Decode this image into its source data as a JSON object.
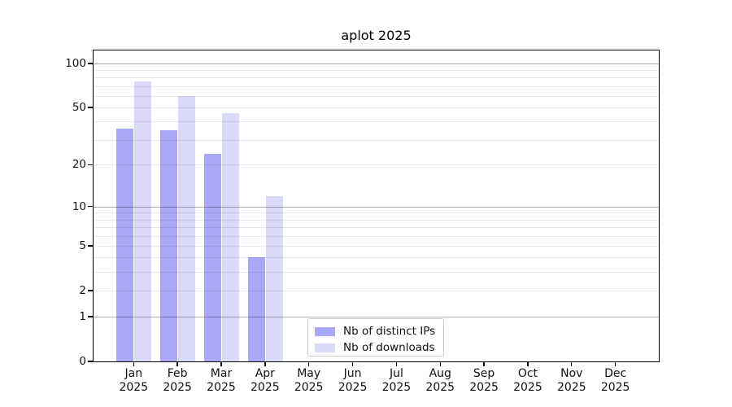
{
  "title": "aplot 2025",
  "chart_data": {
    "type": "bar",
    "title": "aplot 2025",
    "categories": [
      "Jan",
      "Feb",
      "Mar",
      "Apr",
      "May",
      "Jun",
      "Jul",
      "Aug",
      "Sep",
      "Oct",
      "Nov",
      "Dec"
    ],
    "year_label": "2025",
    "series": [
      {
        "key": "ips",
        "name": "Nb of distinct IPs",
        "color": "#a8a8f7",
        "values": [
          36,
          35,
          24,
          4,
          0,
          0,
          0,
          0,
          0,
          0,
          0,
          0
        ]
      },
      {
        "key": "downloads",
        "name": "Nb of downloads",
        "color": "#d9d9f9",
        "values": [
          75,
          60,
          46,
          12,
          0,
          0,
          0,
          0,
          0,
          0,
          0,
          0
        ]
      }
    ],
    "xlabel": "",
    "ylabel": "",
    "yscale": "log1p",
    "ylim": [
      0,
      124
    ],
    "ytick_labels": [
      0,
      1,
      2,
      5,
      10,
      20,
      50,
      100
    ],
    "ymajor_gridlines": [
      1,
      10,
      100
    ],
    "yminor_gridlines": [
      2,
      3,
      4,
      5,
      6,
      7,
      8,
      9,
      20,
      30,
      40,
      50,
      60,
      70,
      80,
      90
    ],
    "grid": "on",
    "legend_position": "lower center-left inside axes"
  },
  "colors": {
    "major_grid": "rgba(0,0,0,0.30)",
    "minor_grid": "rgba(0,0,0,0.085)",
    "spine": "#000000",
    "text": "#111111",
    "legend_border": "#cccccc"
  }
}
